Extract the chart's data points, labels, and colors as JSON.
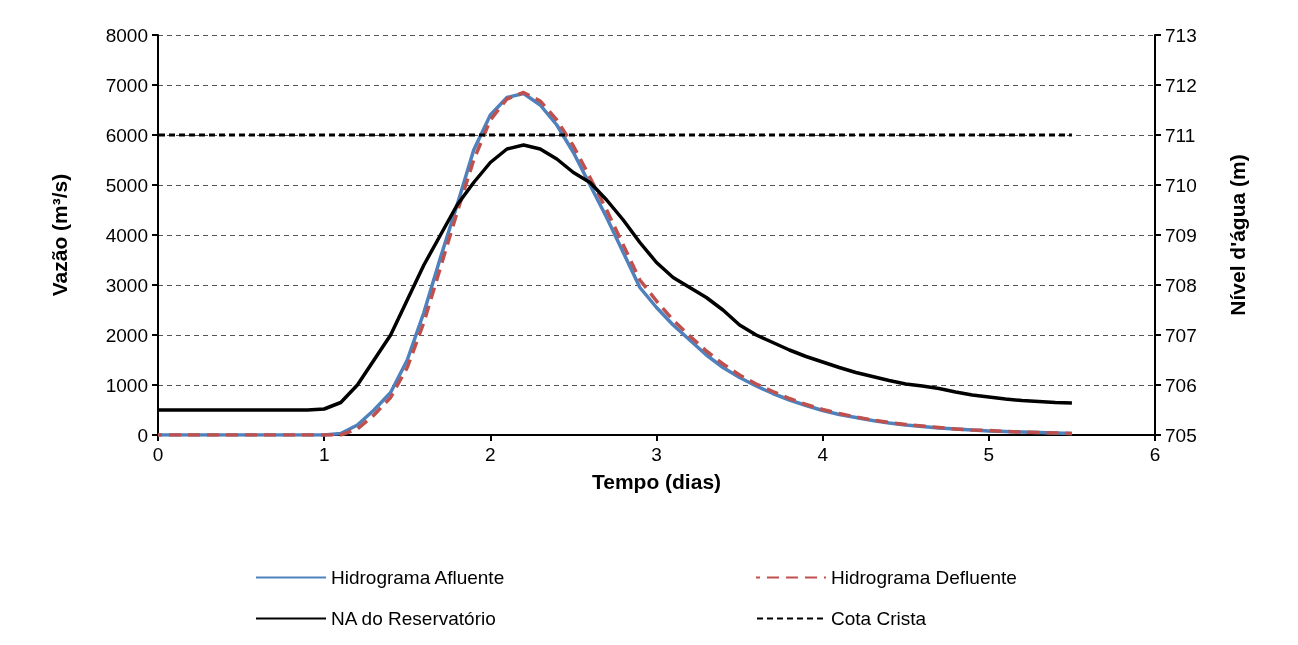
{
  "chart_data": {
    "type": "line",
    "xlabel": "Tempo (dias)",
    "ylabel": "Vazão (m³/s)",
    "y2label": "Nível d'água (m)",
    "x": [
      0,
      0.1,
      0.2,
      0.3,
      0.4,
      0.5,
      0.6,
      0.7,
      0.8,
      0.9,
      1.0,
      1.1,
      1.2,
      1.3,
      1.4,
      1.5,
      1.6,
      1.7,
      1.8,
      1.9,
      2.0,
      2.1,
      2.2,
      2.3,
      2.4,
      2.5,
      2.6,
      2.7,
      2.8,
      2.9,
      3.0,
      3.1,
      3.2,
      3.3,
      3.4,
      3.5,
      3.6,
      3.7,
      3.8,
      3.9,
      4.0,
      4.1,
      4.2,
      4.3,
      4.4,
      4.5,
      4.6,
      4.7,
      4.8,
      4.9,
      5.0,
      5.1,
      5.2,
      5.3,
      5.4,
      5.5
    ],
    "series": [
      {
        "name": "Hidrograma Afluente",
        "color": "#4f81bd",
        "line_style": "solid",
        "values": [
          0,
          0,
          0,
          0,
          0,
          0,
          0,
          0,
          0,
          0,
          0,
          30,
          200,
          500,
          850,
          1500,
          2450,
          3550,
          4600,
          5700,
          6400,
          6750,
          6830,
          6600,
          6200,
          5650,
          5000,
          4350,
          3650,
          2950,
          2550,
          2200,
          1900,
          1600,
          1350,
          1150,
          980,
          830,
          700,
          590,
          490,
          410,
          350,
          290,
          240,
          200,
          170,
          140,
          120,
          100,
          80,
          70,
          60,
          50,
          40,
          30
        ]
      },
      {
        "name": "Hidrograma Defluente",
        "color": "#c0504d",
        "line_style": "dashed",
        "values": [
          0,
          0,
          0,
          0,
          0,
          0,
          0,
          0,
          0,
          0,
          0,
          0,
          120,
          400,
          750,
          1350,
          2250,
          3350,
          4450,
          5500,
          6300,
          6720,
          6850,
          6680,
          6300,
          5780,
          5150,
          4500,
          3800,
          3100,
          2680,
          2300,
          1980,
          1680,
          1420,
          1200,
          1020,
          870,
          730,
          610,
          510,
          430,
          360,
          300,
          250,
          210,
          180,
          150,
          120,
          100,
          90,
          70,
          60,
          50,
          40,
          30
        ]
      },
      {
        "name": "NA do Reservatório",
        "color": "#000000",
        "line_style": "solid",
        "axis": "y2",
        "values": [
          705.5,
          705.5,
          705.5,
          705.5,
          705.5,
          705.5,
          705.5,
          705.5,
          705.5,
          705.5,
          705.52,
          705.65,
          706.0,
          706.5,
          707.0,
          707.7,
          708.4,
          709.0,
          709.6,
          710.05,
          710.45,
          710.72,
          710.8,
          710.72,
          710.52,
          710.25,
          710.05,
          709.7,
          709.3,
          708.85,
          708.45,
          708.15,
          707.95,
          707.75,
          707.5,
          707.2,
          707.0,
          706.85,
          706.7,
          706.57,
          706.46,
          706.35,
          706.25,
          706.17,
          706.09,
          706.02,
          705.98,
          705.93,
          705.86,
          705.8,
          705.76,
          705.72,
          705.69,
          705.67,
          705.65,
          705.64
        ]
      },
      {
        "name": "Cota Crista",
        "color": "#000000",
        "line_style": "dashed",
        "axis": "y2",
        "x": [
          0,
          5.5
        ],
        "values": [
          711,
          711
        ]
      }
    ],
    "xlim": [
      0,
      6
    ],
    "xticks": [
      0,
      1,
      2,
      3,
      4,
      5,
      6
    ],
    "ylim": [
      0,
      8000
    ],
    "yticks": [
      0,
      1000,
      2000,
      3000,
      4000,
      5000,
      6000,
      7000,
      8000
    ],
    "y2lim": [
      705,
      713
    ],
    "y2ticks": [
      705,
      706,
      707,
      708,
      709,
      710,
      711,
      712,
      713
    ],
    "grid": "y",
    "legend": "bottom",
    "marker": "none"
  }
}
